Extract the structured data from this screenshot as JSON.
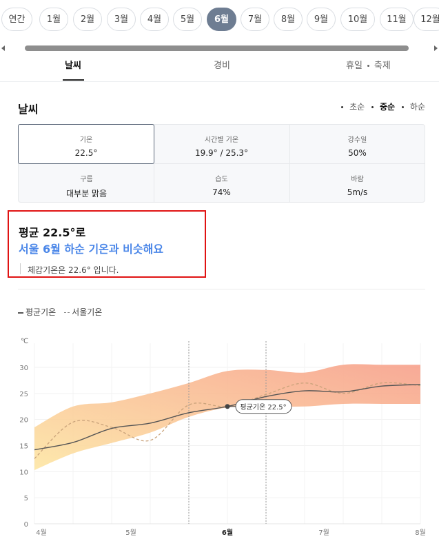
{
  "months": [
    {
      "label": "연간",
      "active": false
    },
    {
      "label": "1월",
      "active": false
    },
    {
      "label": "2월",
      "active": false
    },
    {
      "label": "3월",
      "active": false
    },
    {
      "label": "4월",
      "active": false
    },
    {
      "label": "5월",
      "active": false
    },
    {
      "label": "6월",
      "active": true
    },
    {
      "label": "7월",
      "active": false
    },
    {
      "label": "8월",
      "active": false
    },
    {
      "label": "9월",
      "active": false
    },
    {
      "label": "10월",
      "active": false
    },
    {
      "label": "11월",
      "active": false
    },
    {
      "label": "12월",
      "active": false
    }
  ],
  "tabs": {
    "weather": "날씨",
    "scenery": "경비",
    "holiday": "휴일",
    "festival": "축제"
  },
  "section": {
    "title": "날씨"
  },
  "sort": {
    "early": "초순",
    "mid": "중순",
    "late": "하순"
  },
  "stats": {
    "temp": {
      "label": "기온",
      "value": "22.5°"
    },
    "hourly": {
      "label": "시간별 기온",
      "value": "19.9° / 25.3°"
    },
    "rain": {
      "label": "강수일",
      "value": "50%"
    },
    "cloud": {
      "label": "구름",
      "value": "대부분 맑음"
    },
    "humidity": {
      "label": "습도",
      "value": "74%"
    },
    "wind": {
      "label": "바람",
      "value": "5m/s"
    }
  },
  "summary": {
    "line1": "평균 22.5°로",
    "line2": "서울 6월 하순 기온과 비슷해요",
    "line3": "체감기온은 22.6° 입니다."
  },
  "legend": {
    "avg": "평균기온",
    "seoul": "서울기온"
  },
  "chart_data": {
    "type": "line",
    "ylabel": "℃",
    "ylim": [
      0,
      30
    ],
    "yticks": [
      0,
      5,
      10,
      15,
      20,
      25,
      30
    ],
    "xticks": [
      "4월",
      "5월",
      "6월",
      "7월",
      "8월"
    ],
    "x": [
      0,
      0.5,
      1,
      1.5,
      2,
      2.5,
      3,
      3.5,
      4,
      4.5,
      5
    ],
    "series": [
      {
        "name": "평균기온",
        "values": [
          14.2,
          15.6,
          18.3,
          19.3,
          21.3,
          22.5,
          24.4,
          25.5,
          25.3,
          26.4,
          26.7
        ]
      },
      {
        "name": "서울기온",
        "values": [
          12.5,
          19.5,
          18.5,
          16.0,
          22.8,
          22.5,
          24.8,
          27.0,
          25.0,
          27.0,
          26.5
        ]
      },
      {
        "name": "range-high",
        "values": [
          18.5,
          22.5,
          23.3,
          25.0,
          27.0,
          29.3,
          29.5,
          29.0,
          30.5,
          30.5,
          30.5
        ]
      },
      {
        "name": "range-low",
        "values": [
          10.3,
          13.5,
          15.5,
          17.5,
          20.5,
          22.3,
          22.5,
          22.5,
          23.0,
          23.0,
          23.0
        ]
      }
    ],
    "marker": {
      "x": 2.5,
      "y": 22.5,
      "label": "평균기온 22.5°"
    },
    "highlight_range": [
      2,
      3
    ],
    "colors": {
      "avg": "#555555",
      "seoul": "#c9a27a",
      "band_low": "#fde6a3",
      "band_high": "#f7a08b"
    }
  }
}
